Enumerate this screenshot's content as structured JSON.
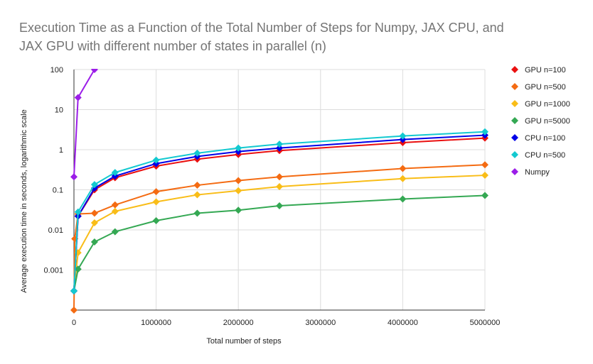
{
  "chart_data": {
    "type": "line",
    "title_lines": [
      "Execution Time as a Function of the Total Number of Steps for Numpy, JAX CPU, and",
      "JAX GPU with different number of states in parallel (n)"
    ],
    "xlabel": "Total number of steps",
    "ylabel": "Average execution time in seconds, logarithmic scale",
    "y_scale": "log",
    "ylim": [
      0.0001,
      100
    ],
    "xlim": [
      0,
      5000000
    ],
    "x_ticks": [
      0,
      1000000,
      2000000,
      3000000,
      4000000,
      5000000
    ],
    "x_tick_labels": [
      "0",
      "1000000",
      "2000000",
      "3000000",
      "4000000",
      "5000000"
    ],
    "y_ticks": [
      0.001,
      0.01,
      0.1,
      1,
      10,
      100
    ],
    "y_tick_labels": [
      "0.001",
      "0.01",
      "0.1",
      "1",
      "10",
      "100"
    ],
    "grid": true,
    "legend_position": "right",
    "series": [
      {
        "name": "GPU n=100",
        "color": "#ea1010",
        "x": [
          0,
          50000,
          250000,
          500000,
          1000000,
          1500000,
          2000000,
          2500000,
          4000000,
          5000000
        ],
        "y": [
          0.0003,
          0.022,
          0.1,
          0.2,
          0.39,
          0.58,
          0.76,
          0.95,
          1.5,
          1.95
        ]
      },
      {
        "name": "GPU n=500",
        "color": "#f46b12",
        "x": [
          0,
          10000,
          50000,
          250000,
          500000,
          1000000,
          1500000,
          2000000,
          2500000,
          4000000,
          5000000
        ],
        "y": [
          0.0001,
          0.006,
          0.025,
          0.026,
          0.042,
          0.09,
          0.13,
          0.17,
          0.21,
          0.34,
          0.42
        ]
      },
      {
        "name": "GPU n=1000",
        "color": "#f9bd18",
        "x": [
          0,
          50000,
          250000,
          500000,
          1000000,
          1500000,
          2000000,
          2500000,
          4000000,
          5000000
        ],
        "y": [
          0.0003,
          0.0027,
          0.015,
          0.029,
          0.05,
          0.075,
          0.095,
          0.12,
          0.19,
          0.23
        ]
      },
      {
        "name": "GPU n=5000",
        "color": "#34a853",
        "x": [
          0,
          50000,
          250000,
          500000,
          1000000,
          1500000,
          2000000,
          2500000,
          4000000,
          5000000
        ],
        "y": [
          0.0003,
          0.00105,
          0.005,
          0.009,
          0.017,
          0.026,
          0.031,
          0.04,
          0.059,
          0.072
        ]
      },
      {
        "name": "CPU n=100",
        "color": "#0000e8",
        "x": [
          0,
          50000,
          250000,
          500000,
          1000000,
          1500000,
          2000000,
          2500000,
          4000000,
          5000000
        ],
        "y": [
          0.0003,
          0.022,
          0.11,
          0.22,
          0.45,
          0.68,
          0.9,
          1.1,
          1.8,
          2.3
        ]
      },
      {
        "name": "CPU n=500",
        "color": "#13c9d0",
        "x": [
          0,
          50000,
          250000,
          500000,
          1000000,
          1500000,
          2000000,
          2500000,
          4000000,
          5000000
        ],
        "y": [
          0.0003,
          0.028,
          0.135,
          0.27,
          0.55,
          0.82,
          1.1,
          1.38,
          2.2,
          2.8
        ]
      },
      {
        "name": "Numpy",
        "color": "#9b1de8",
        "x": [
          0,
          50000,
          250000
        ],
        "y": [
          0.21,
          20,
          100
        ]
      }
    ]
  }
}
